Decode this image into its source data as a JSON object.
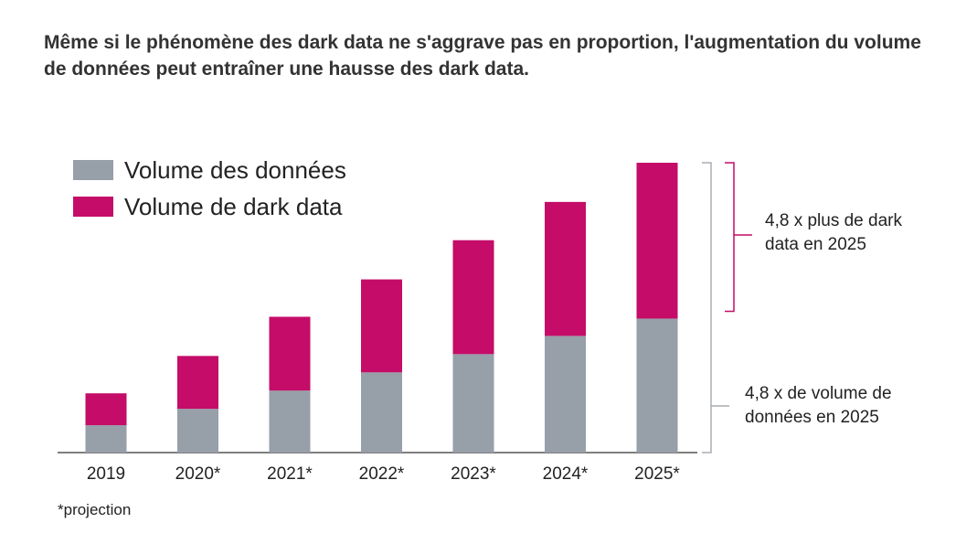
{
  "title": "Même si le phénomène des dark data ne s'aggrave pas en proportion, l'augmentation du volume de données peut entraîner une hausse des dark data.",
  "colors": {
    "data": "#979fa9",
    "dark": "#c40c68",
    "axis": "#555555",
    "bracket_gray": "#a8adb3"
  },
  "annotations": {
    "dark": "4,8 x plus de dark data en 2025",
    "volume": "4,8 x de volume de données en 2025"
  },
  "footnote": "*projection",
  "chart_data": {
    "type": "bar",
    "stacked": true,
    "categories": [
      "2019",
      "2020*",
      "2021*",
      "2022*",
      "2023*",
      "2024*",
      "2025*"
    ],
    "series": [
      {
        "name": "Volume des données",
        "color": "#979fa9",
        "values": [
          30,
          48,
          68,
          88,
          108,
          128,
          147
        ]
      },
      {
        "name": "Volume de dark data",
        "color": "#c40c68",
        "values": [
          35,
          58,
          81,
          102,
          125,
          147,
          171
        ]
      }
    ],
    "ylim": [
      0,
      320
    ],
    "grid": false,
    "legend": "top-left",
    "title": "",
    "xlabel": "",
    "ylabel": ""
  }
}
